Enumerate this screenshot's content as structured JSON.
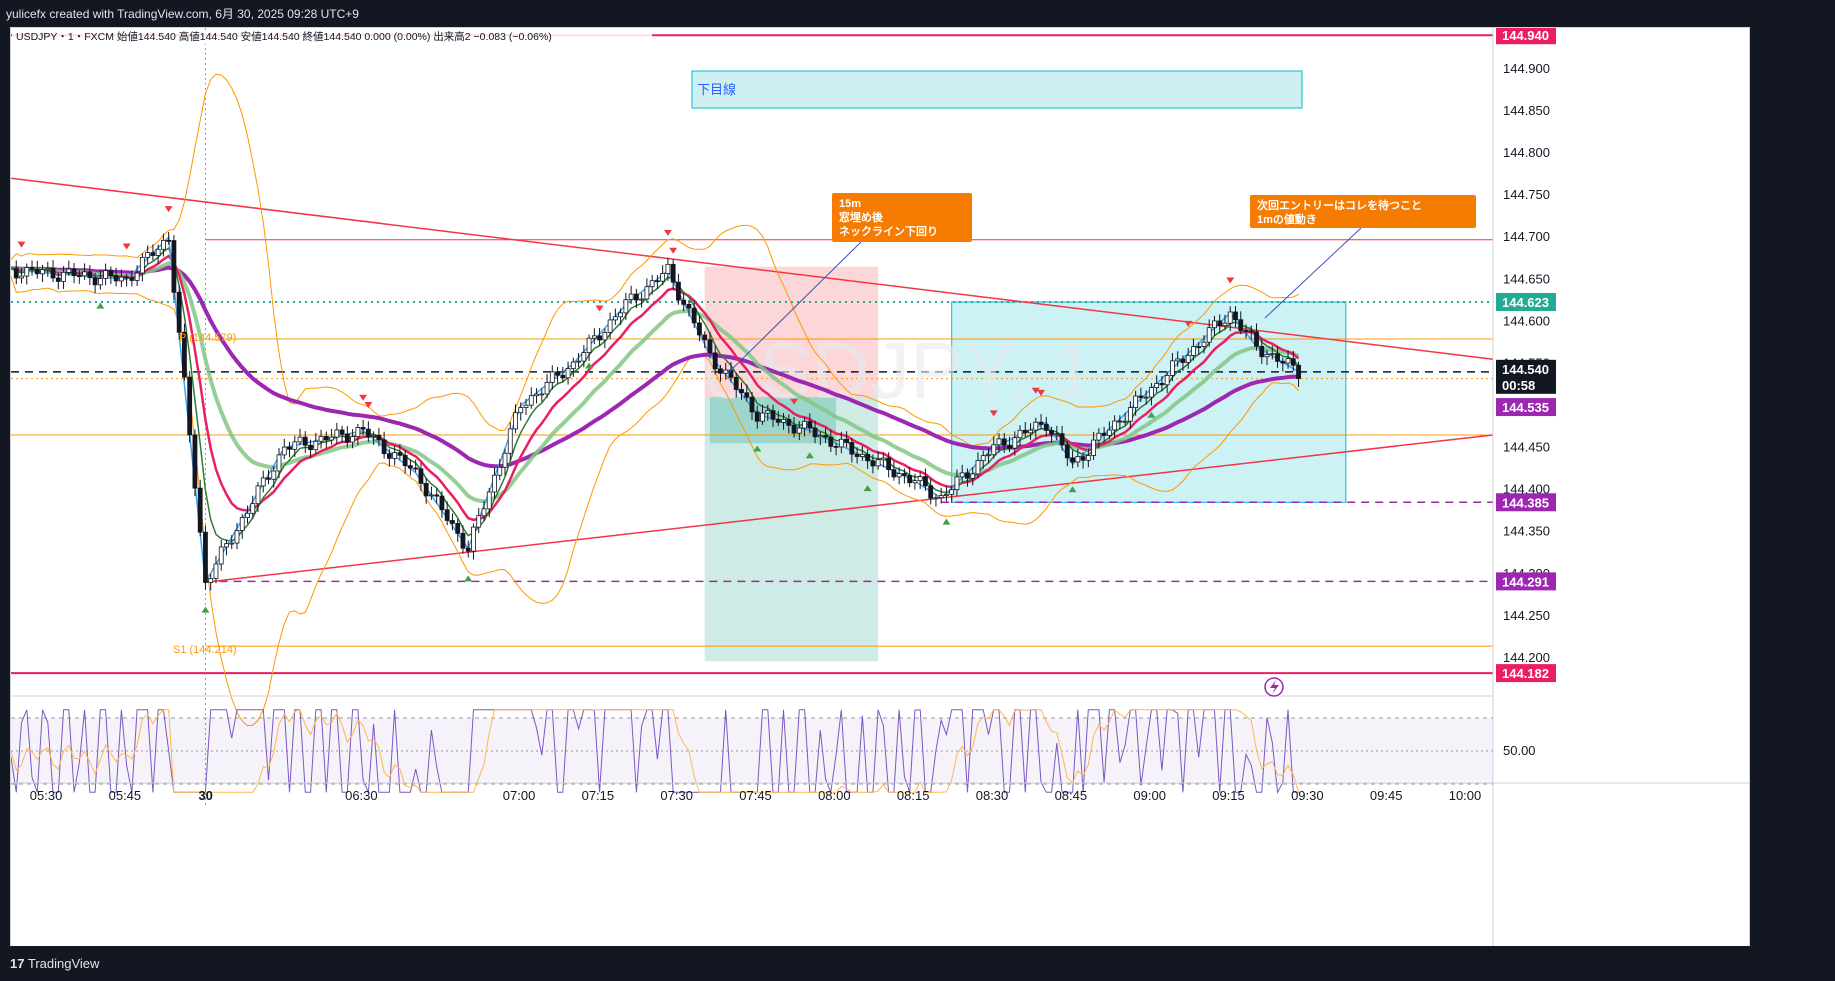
{
  "header": {
    "caption": "yulicefx created with TradingView.com, 6月 30, 2025 09:28 UTC+9"
  },
  "footer": {
    "brand": "TradingView",
    "logo_icon": "tradingview-logo-icon"
  },
  "legend": {
    "text": "USDJPY・1・FXCM  始値144.540  高値144.540  安値144.540  終値144.540  0.000 (0.00%)  出来高2  −0.083 (−0.06%)"
  },
  "annotations": {
    "target_box": "下目線",
    "note_15m": [
      "15m",
      "窓埋め後",
      "ネックライン下回り"
    ],
    "note_entry": [
      "次回エントリーはコレを待つこと",
      "1mの値動き"
    ],
    "pivot_p": "P (144.579)",
    "pivot_s1": "S1 (144.214)",
    "watermark": "USDJPY, 1"
  },
  "price_axis": {
    "ticks": [
      "144.900",
      "144.850",
      "144.800",
      "144.750",
      "144.700",
      "144.650",
      "144.600",
      "144.550",
      "144.500",
      "144.450",
      "144.400",
      "144.350",
      "144.300",
      "144.250",
      "144.200"
    ],
    "badges": [
      {
        "label": "144.940",
        "color": "#e91e63"
      },
      {
        "label": "144.623",
        "color": "#22ab94"
      },
      {
        "label": "144.540",
        "color": "#131722"
      },
      {
        "label": "00:58",
        "color": "#131722"
      },
      {
        "label": "144.535",
        "color": "#9c27b0"
      },
      {
        "label": "144.385",
        "color": "#9c27b0"
      },
      {
        "label": "144.291",
        "color": "#9c27b0"
      },
      {
        "label": "144.182",
        "color": "#e91e63"
      }
    ]
  },
  "rsi_axis": {
    "ticks": [
      "50.00"
    ]
  },
  "time_axis": {
    "ticks": [
      "05:30",
      "05:45",
      "30",
      "06:30",
      "07:00",
      "07:15",
      "07:30",
      "07:45",
      "08:00",
      "08:15",
      "08:30",
      "08:45",
      "09:00",
      "09:15",
      "09:30",
      "09:45",
      "10:00"
    ]
  },
  "colors": {
    "up": "#ffffff",
    "down": "#131722",
    "ema_fast": "#e91e63",
    "ema_mid": "#81c784",
    "ema_slow": "#9c27b0",
    "bands": "#ff9800",
    "zigzag": "#42a5f5",
    "rsi": "#7e57c2"
  },
  "chart_data": {
    "type": "candlestick",
    "symbol": "USDJPY",
    "timeframe": "1",
    "xlim": [
      "05:23",
      "10:05"
    ],
    "ylim": [
      144.175,
      144.945
    ],
    "levels": {
      "resistance_top": 144.94,
      "support_bottom": 144.182,
      "dotted_high": 144.623,
      "pivot_p": 144.579,
      "pivot_s1": 144.214,
      "dashed_low_1": 144.385,
      "dashed_low_2": 144.291,
      "current": 144.54,
      "ema_slow_value": 144.535,
      "horizontal_red": 144.697
    },
    "key_prices": [
      {
        "t": "05:25",
        "p": 144.66
      },
      {
        "t": "05:45",
        "p": 144.65
      },
      {
        "t": "05:53",
        "p": 144.7
      },
      {
        "t": "06:00",
        "p": 144.29
      },
      {
        "t": "06:15",
        "p": 144.45
      },
      {
        "t": "06:30",
        "p": 144.47
      },
      {
        "t": "06:40",
        "p": 144.42
      },
      {
        "t": "06:50",
        "p": 144.33
      },
      {
        "t": "07:00",
        "p": 144.5
      },
      {
        "t": "07:10",
        "p": 144.55
      },
      {
        "t": "07:20",
        "p": 144.62
      },
      {
        "t": "07:28",
        "p": 144.66
      },
      {
        "t": "07:36",
        "p": 144.56
      },
      {
        "t": "07:45",
        "p": 144.49
      },
      {
        "t": "07:55",
        "p": 144.47
      },
      {
        "t": "08:05",
        "p": 144.44
      },
      {
        "t": "08:15",
        "p": 144.41
      },
      {
        "t": "08:20",
        "p": 144.39
      },
      {
        "t": "08:30",
        "p": 144.45
      },
      {
        "t": "08:40",
        "p": 144.48
      },
      {
        "t": "08:45",
        "p": 144.43
      },
      {
        "t": "08:55",
        "p": 144.49
      },
      {
        "t": "09:05",
        "p": 144.55
      },
      {
        "t": "09:15",
        "p": 144.61
      },
      {
        "t": "09:20",
        "p": 144.57
      },
      {
        "t": "09:28",
        "p": 144.54
      }
    ],
    "trendlines": [
      {
        "from": {
          "t": "05:23",
          "p": 144.77
        },
        "to": {
          "t": "10:05",
          "p": 144.555
        }
      },
      {
        "from": {
          "t": "06:00",
          "p": 144.29
        },
        "to": {
          "t": "10:05",
          "p": 144.465
        }
      }
    ],
    "zones": [
      {
        "kind": "stop",
        "from_t": "07:35",
        "to_t": "08:08",
        "top": 144.665,
        "bottom": 144.51
      },
      {
        "kind": "target",
        "from_t": "07:35",
        "to_t": "08:08",
        "top": 144.51,
        "bottom": 144.196
      },
      {
        "kind": "range",
        "from_t": "08:22",
        "to_t": "09:37",
        "top": 144.623,
        "bottom": 144.385
      }
    ],
    "rsi": {
      "mid": 50,
      "upper": 70,
      "lower": 30
    }
  }
}
